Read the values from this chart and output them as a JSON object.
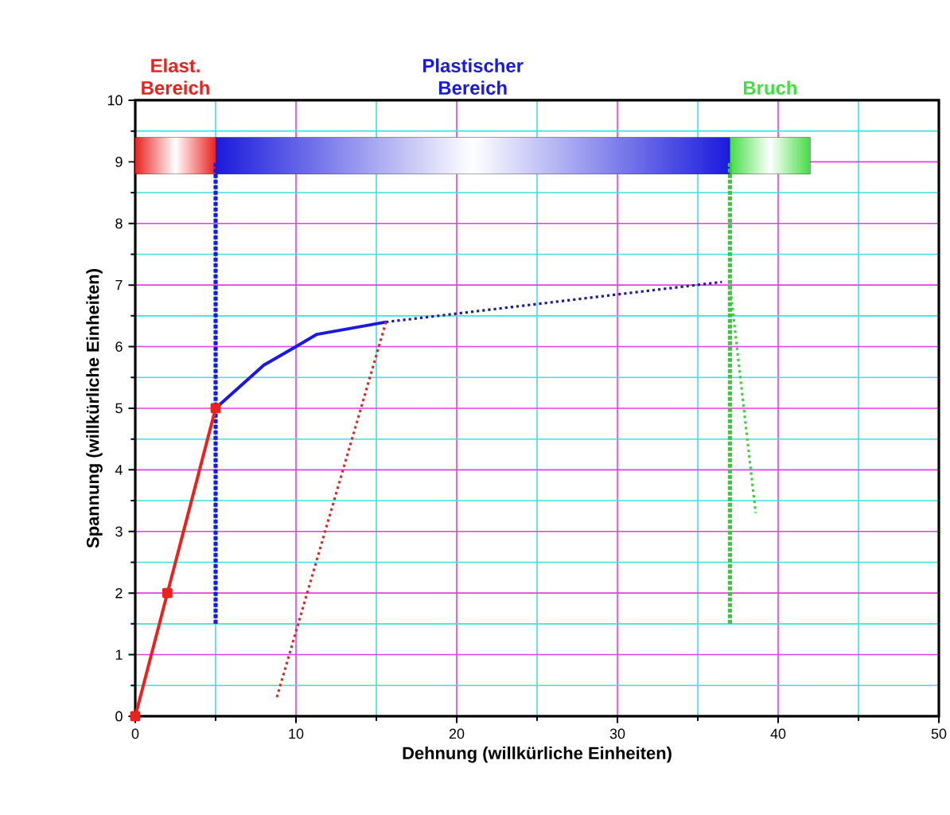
{
  "chart_data": {
    "type": "line",
    "xlabel": "Dehnung (willkürliche Einheiten)",
    "ylabel": "Spannung (willkürliche Einheiten)",
    "xlim": [
      0,
      50
    ],
    "ylim": [
      0,
      10
    ],
    "xticks": [
      0,
      {
        "value": 5,
        "label": null
      },
      10,
      {
        "value": 15,
        "label": null
      },
      20,
      {
        "value": 25,
        "label": null
      },
      30,
      {
        "value": 35,
        "label": null
      },
      40,
      {
        "value": 45,
        "label": null
      },
      50
    ],
    "yticks": [
      0,
      {
        "value": 0.5,
        "label": null
      },
      1,
      {
        "value": 1.5,
        "label": null
      },
      2,
      {
        "value": 2.5,
        "label": null
      },
      3,
      {
        "value": 3.5,
        "label": null
      },
      4,
      {
        "value": 4.5,
        "label": null
      },
      5,
      {
        "value": 5.5,
        "label": null
      },
      6,
      {
        "value": 6.5,
        "label": null
      },
      7,
      {
        "value": 7.5,
        "label": null
      },
      8,
      {
        "value": 8.5,
        "label": null
      },
      9,
      {
        "value": 9.5,
        "label": null
      },
      10
    ],
    "grid": true,
    "bands": [
      {
        "axis": "x",
        "from": 0,
        "to": 5,
        "label": "Elast. Bereich",
        "color": "#e8231f"
      },
      {
        "axis": "x",
        "from": 5,
        "to": 37,
        "label": "Plastischer Bereich",
        "color": "#1a1adc"
      },
      {
        "axis": "x",
        "from": 37,
        "to": 42,
        "label": "Bruch",
        "color": "#44dd44"
      }
    ],
    "series": [
      {
        "x": [
          5,
          5
        ],
        "values": [
          1.5,
          9
        ],
        "color": "#1a1adc",
        "line_style": "dashed"
      },
      {
        "x": [
          37,
          37
        ],
        "values": [
          1.5,
          9
        ],
        "color": "#33cc33",
        "line_style": "dashed"
      },
      {
        "x": [
          0,
          2,
          5
        ],
        "values": [
          0,
          2,
          5
        ],
        "color": "#e8231f",
        "line_style": "solid",
        "marker": "square"
      },
      {
        "x": [
          5,
          8,
          10,
          11.3,
          15.6
        ],
        "values": [
          5,
          5.7,
          6,
          6.2,
          6.4
        ],
        "color": "#1a1adc",
        "line_style": "solid"
      },
      {
        "x": [
          15.6,
          36.5
        ],
        "values": [
          6.4,
          7.05
        ],
        "color": "#1a1a9a",
        "line_style": "dotted"
      },
      {
        "x": [
          15.6,
          8.8
        ],
        "values": [
          6.4,
          0.3
        ],
        "color": "#e8231f",
        "line_style": "dotted"
      },
      {
        "x": [
          37,
          38.6
        ],
        "values": [
          7,
          3.3
        ],
        "color": "#44cc44",
        "line_style": "dotted"
      }
    ]
  }
}
